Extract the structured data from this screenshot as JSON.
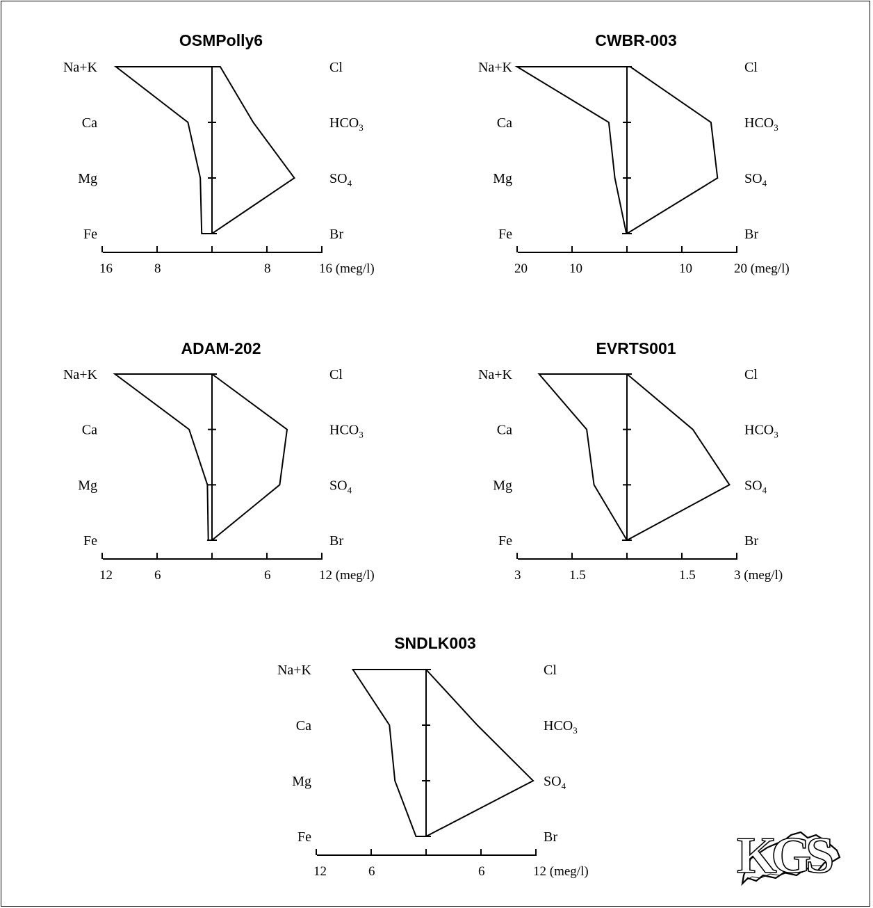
{
  "chart_data": [
    {
      "type": "stiff",
      "title": "OSMPolly6",
      "cation_labels": [
        "Na+K",
        "Ca",
        "Mg",
        "Fe"
      ],
      "anion_labels": [
        "Cl",
        "HCO3",
        "SO4",
        "Br"
      ],
      "cations": [
        14.0,
        3.5,
        1.7,
        1.5
      ],
      "anions": [
        1.2,
        6.0,
        12.0,
        0.0
      ],
      "axis_max": 16,
      "ticks": [
        {
          "value": -16,
          "label": "16"
        },
        {
          "value": -8,
          "label": "8"
        },
        {
          "value": 8,
          "label": "8"
        },
        {
          "value": 16,
          "label": "16 (meg/l)"
        }
      ]
    },
    {
      "type": "stiff",
      "title": "CWBR-003",
      "cation_labels": [
        "Na+K",
        "Ca",
        "Mg",
        "Fe"
      ],
      "anion_labels": [
        "Cl",
        "HCO3",
        "SO4",
        "Br"
      ],
      "cations": [
        20.0,
        3.3,
        2.2,
        0.1
      ],
      "anions": [
        0.6,
        15.3,
        16.5,
        0.0
      ],
      "axis_max": 20,
      "ticks": [
        {
          "value": -20,
          "label": "20"
        },
        {
          "value": -10,
          "label": "10"
        },
        {
          "value": 10,
          "label": "10"
        },
        {
          "value": 20,
          "label": "20 (meg/l)"
        }
      ]
    },
    {
      "type": "stiff",
      "title": "ADAM-202",
      "cation_labels": [
        "Na+K",
        "Ca",
        "Mg",
        "Fe"
      ],
      "anion_labels": [
        "Cl",
        "HCO3",
        "SO4",
        "Br"
      ],
      "cations": [
        10.6,
        2.5,
        0.5,
        0.4
      ],
      "anions": [
        0.0,
        8.2,
        7.4,
        0.0
      ],
      "axis_max": 12,
      "ticks": [
        {
          "value": -12,
          "label": "12"
        },
        {
          "value": -6,
          "label": "6"
        },
        {
          "value": 6,
          "label": "6"
        },
        {
          "value": 12,
          "label": "12 (meg/l)"
        }
      ]
    },
    {
      "type": "stiff",
      "title": "EVRTS001",
      "cation_labels": [
        "Na+K",
        "Ca",
        "Mg",
        "Fe"
      ],
      "anion_labels": [
        "Cl",
        "HCO3",
        "SO4",
        "Br"
      ],
      "cations": [
        2.4,
        1.1,
        0.9,
        0.0
      ],
      "anions": [
        0.0,
        1.8,
        2.8,
        0.0
      ],
      "axis_max": 3,
      "ticks": [
        {
          "value": -3,
          "label": "3"
        },
        {
          "value": -1.5,
          "label": "1.5"
        },
        {
          "value": 1.5,
          "label": "1.5"
        },
        {
          "value": 3,
          "label": "3 (meg/l)"
        }
      ]
    },
    {
      "type": "stiff",
      "title": "SNDLK003",
      "cation_labels": [
        "Na+K",
        "Ca",
        "Mg",
        "Fe"
      ],
      "anion_labels": [
        "Cl",
        "HCO3",
        "SO4",
        "Br"
      ],
      "cations": [
        8.0,
        4.0,
        3.4,
        1.1
      ],
      "anions": [
        0.0,
        5.6,
        11.7,
        0.0
      ],
      "axis_max": 12,
      "ticks": [
        {
          "value": -12,
          "label": "12"
        },
        {
          "value": -6,
          "label": "6"
        },
        {
          "value": 6,
          "label": "6"
        },
        {
          "value": 12,
          "label": "12 (meg/l)"
        }
      ]
    }
  ],
  "logo_text": "KGS"
}
